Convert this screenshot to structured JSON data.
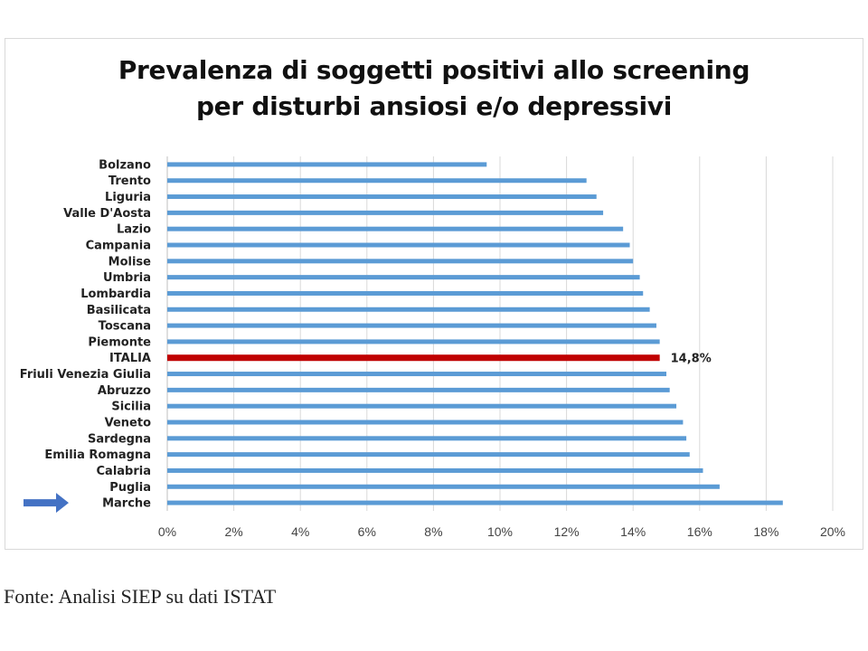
{
  "chart_data": {
    "type": "bar",
    "orientation": "horizontal",
    "title_lines": [
      "Prevalenza di soggetti positivi allo screening",
      "per disturbi ansiosi e/o depressivi"
    ],
    "categories": [
      "Bolzano",
      "Trento",
      "Liguria",
      "Valle D'Aosta",
      "Lazio",
      "Campania",
      "Molise",
      "Umbria",
      "Lombardia",
      "Basilicata",
      "Toscana",
      "Piemonte",
      "ITALIA",
      "Friuli Venezia Giulia",
      "Abruzzo",
      "Sicilia",
      "Veneto",
      "Sardegna",
      "Emilia Romagna",
      "Calabria",
      "Puglia",
      "Marche"
    ],
    "values": [
      9.6,
      12.6,
      12.9,
      13.1,
      13.7,
      13.9,
      14.0,
      14.2,
      14.3,
      14.5,
      14.7,
      14.8,
      14.8,
      15.0,
      15.1,
      15.3,
      15.5,
      15.6,
      15.7,
      16.1,
      16.6,
      18.5
    ],
    "highlight": {
      "category": "ITALIA",
      "label": "14,8%",
      "color": "#c00000"
    },
    "bar_color": "#5b9bd5",
    "xlim": [
      0,
      20
    ],
    "xticks": [
      0,
      2,
      4,
      6,
      8,
      10,
      12,
      14,
      16,
      18,
      20
    ],
    "xtick_labels": [
      "0%",
      "2%",
      "4%",
      "6%",
      "8%",
      "10%",
      "12%",
      "14%",
      "16%",
      "18%",
      "20%"
    ],
    "grid": "vertical",
    "legend": "none",
    "marker": {
      "category": "Marche",
      "shape": "arrow",
      "color": "#4472c4"
    }
  },
  "source_text": "Fonte: Analisi SIEP su dati ISTAT"
}
